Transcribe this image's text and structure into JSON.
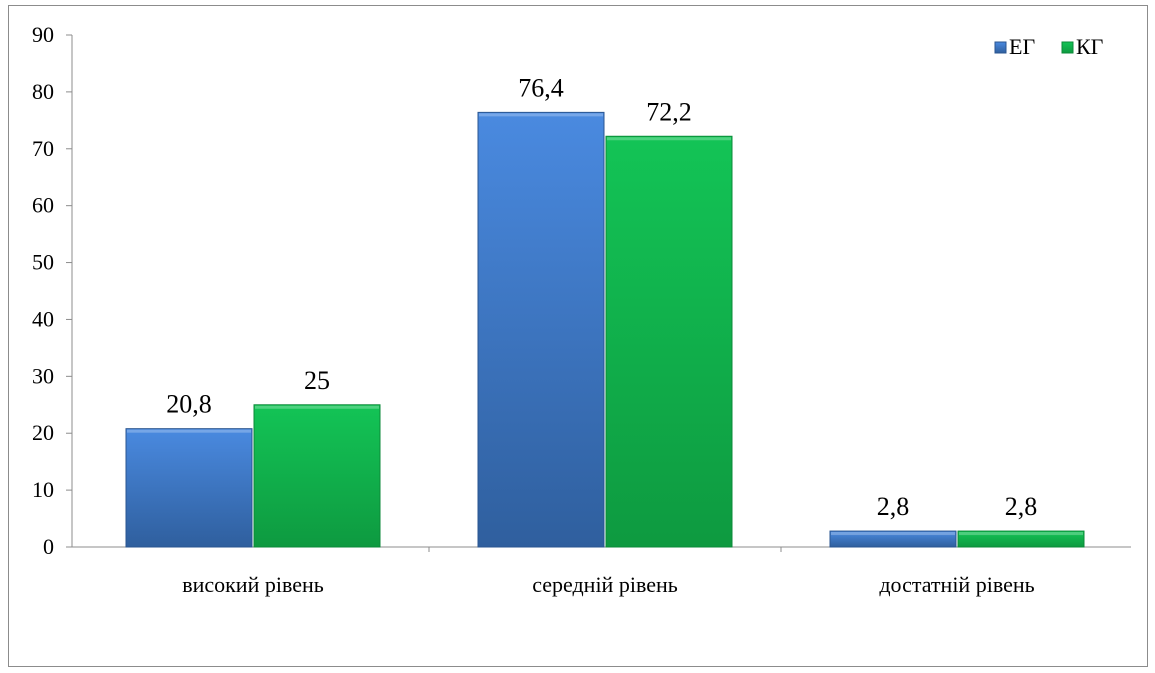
{
  "chart_data": {
    "type": "bar",
    "categories": [
      "високий рівень",
      "середній рівень",
      "достатній рівень"
    ],
    "series": [
      {
        "name": "ЕГ",
        "values": [
          20.8,
          76.4,
          2.8
        ],
        "labels": [
          "20,8",
          "76,4",
          "2,8"
        ],
        "color": "#3f7fd3"
      },
      {
        "name": "КГ",
        "values": [
          25,
          72.2,
          2.8
        ],
        "labels": [
          "25",
          "72,2",
          "2,8"
        ],
        "color": "#12b84e"
      }
    ],
    "title": "",
    "xlabel": "",
    "ylabel": "",
    "ylim": [
      0,
      90
    ],
    "yticks": [
      "0",
      "10",
      "20",
      "30",
      "40",
      "50",
      "60",
      "70",
      "80",
      "90"
    ],
    "grid": false,
    "legend_position": "top-right"
  }
}
